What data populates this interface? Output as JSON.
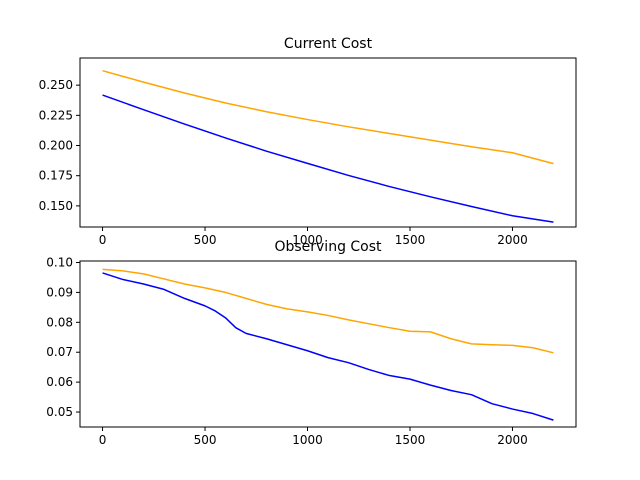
{
  "chart_data": [
    {
      "type": "line",
      "title": "Current Cost",
      "xlabel": "",
      "ylabel": "",
      "xlim": [
        -110,
        2310
      ],
      "ylim": [
        0.1325,
        0.2725
      ],
      "xticks": [
        0,
        500,
        1000,
        1500,
        2000
      ],
      "xtick_labels": [
        "0",
        "500",
        "1000",
        "1500",
        "2000"
      ],
      "yticks": [
        0.15,
        0.175,
        0.2,
        0.225,
        0.25
      ],
      "ytick_labels": [
        "0.150",
        "0.175",
        "0.200",
        "0.225",
        "0.250"
      ],
      "grid": false,
      "series": [
        {
          "color": "#0000ff",
          "x": [
            0,
            200,
            400,
            600,
            800,
            1000,
            1200,
            1400,
            1600,
            1800,
            2000,
            2200
          ],
          "y": [
            0.2418,
            0.2297,
            0.2178,
            0.2063,
            0.1953,
            0.1852,
            0.1752,
            0.166,
            0.1575,
            0.1495,
            0.1418,
            0.1365
          ]
        },
        {
          "color": "#ffa500",
          "x": [
            0,
            200,
            400,
            600,
            800,
            1000,
            1200,
            1400,
            1600,
            1800,
            2000,
            2200
          ],
          "y": [
            0.262,
            0.2525,
            0.2435,
            0.2352,
            0.228,
            0.2215,
            0.2155,
            0.21,
            0.2045,
            0.199,
            0.194,
            0.185
          ]
        }
      ]
    },
    {
      "type": "line",
      "title": "Observing Cost",
      "xlabel": "",
      "ylabel": "",
      "xlim": [
        -110,
        2310
      ],
      "ylim": [
        0.045,
        0.1005
      ],
      "xticks": [
        0,
        500,
        1000,
        1500,
        2000
      ],
      "xtick_labels": [
        "0",
        "500",
        "1000",
        "1500",
        "2000"
      ],
      "yticks": [
        0.05,
        0.06,
        0.07,
        0.08,
        0.09,
        0.1
      ],
      "ytick_labels": [
        "0.05",
        "0.06",
        "0.07",
        "0.08",
        "0.09",
        "0.10"
      ],
      "grid": false,
      "series": [
        {
          "color": "#0000ff",
          "x": [
            0,
            100,
            200,
            300,
            400,
            500,
            550,
            600,
            650,
            700,
            800,
            900,
            1000,
            1100,
            1200,
            1300,
            1400,
            1500,
            1600,
            1700,
            1800,
            1900,
            2000,
            2100,
            2200
          ],
          "y": [
            0.0965,
            0.0943,
            0.0928,
            0.091,
            0.088,
            0.0855,
            0.0838,
            0.0815,
            0.0782,
            0.0763,
            0.0745,
            0.0725,
            0.0705,
            0.0682,
            0.0665,
            0.0642,
            0.0622,
            0.061,
            0.059,
            0.0572,
            0.0558,
            0.0528,
            0.051,
            0.0495,
            0.0473
          ]
        },
        {
          "color": "#ffa500",
          "x": [
            0,
            100,
            200,
            300,
            400,
            500,
            600,
            700,
            800,
            900,
            1000,
            1100,
            1200,
            1300,
            1400,
            1500,
            1600,
            1700,
            1800,
            1900,
            2000,
            2100,
            2200
          ],
          "y": [
            0.0977,
            0.0972,
            0.0962,
            0.0945,
            0.0928,
            0.0915,
            0.09,
            0.088,
            0.086,
            0.0845,
            0.0835,
            0.0823,
            0.0808,
            0.0795,
            0.0782,
            0.077,
            0.0768,
            0.0745,
            0.0728,
            0.0725,
            0.0723,
            0.0715,
            0.0698
          ]
        }
      ]
    }
  ]
}
